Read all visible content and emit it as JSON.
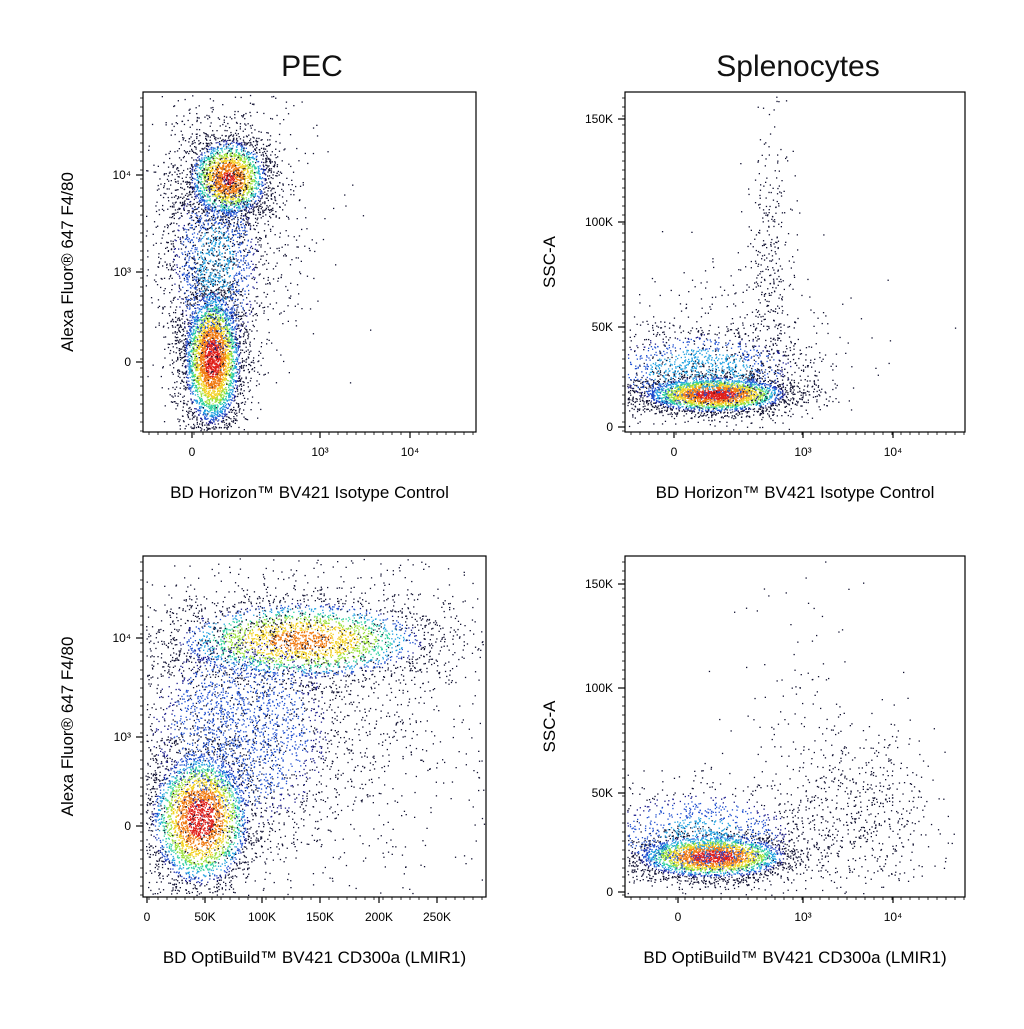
{
  "figure": {
    "column_titles": [
      "PEC",
      "Splenocytes"
    ]
  },
  "colors": {
    "density": [
      "#1a1a8c",
      "#1f4fd0",
      "#1fa0e0",
      "#2fd0a0",
      "#9be03a",
      "#f2d020",
      "#f07a10",
      "#e0201a"
    ],
    "points": "#101030",
    "axes": "#000000"
  },
  "chart_data": [
    {
      "type": "scatter",
      "id": "pec-isotype",
      "title": "PEC",
      "xlabel": "BD Horizon™ BV421 Isotype Control",
      "ylabel": "Alexa Fluor® 647 F4/80",
      "x_scale": "biexponential",
      "y_scale": "biexponential",
      "x_ticks": [
        "0",
        "10³",
        "10⁴"
      ],
      "y_ticks": [
        "0",
        "10³",
        "10⁴"
      ],
      "populations": [
        {
          "name": "",
          "x_center": 150,
          "y_center": 40,
          "spread": "large",
          "density": "high"
        },
        {
          "name": "",
          "x_center": 250,
          "y_center": 9000,
          "spread": "medium",
          "density": "high"
        }
      ]
    },
    {
      "type": "scatter",
      "id": "spleno-isotype",
      "title": "Splenocytes",
      "xlabel": "BD Horizon™ BV421 Isotype Control",
      "ylabel": "SSC-A",
      "x_scale": "biexponential",
      "y_scale": "linear",
      "x_ticks": [
        "0",
        "10³",
        "10⁴"
      ],
      "y_ticks": [
        "0",
        "50K",
        "100K",
        "150K"
      ],
      "ylim": [
        0,
        160000
      ],
      "populations": [
        {
          "name": "",
          "x_center": 250,
          "y_center": 17000,
          "spread": "medium",
          "density": "high"
        },
        {
          "name": "",
          "x_center": 700,
          "y_center": 70000,
          "spread": "tail",
          "density": "low"
        }
      ]
    },
    {
      "type": "scatter",
      "id": "pec-cd300a",
      "title": "",
      "xlabel": "BD OptiBuild™ BV421 CD300a (LMIR1)",
      "ylabel": "Alexa Fluor® 647 F4/80",
      "x_scale": "linear",
      "y_scale": "biexponential",
      "x_ticks": [
        "0",
        "50K",
        "100K",
        "150K",
        "200K",
        "250K"
      ],
      "y_ticks": [
        "0",
        "10³",
        "10⁴"
      ],
      "xlim": [
        0,
        290000
      ],
      "populations": [
        {
          "name": "",
          "x_center": 50000,
          "y_center": 20,
          "spread": "large",
          "density": "high"
        },
        {
          "name": "",
          "x_center": 140000,
          "y_center": 10000,
          "spread": "wide",
          "density": "high"
        }
      ]
    },
    {
      "type": "scatter",
      "id": "spleno-cd300a",
      "title": "",
      "xlabel": "BD OptiBuild™ BV421 CD300a (LMIR1)",
      "ylabel": "SSC-A",
      "x_scale": "biexponential",
      "y_scale": "linear",
      "x_ticks": [
        "0",
        "10³",
        "10⁴"
      ],
      "y_ticks": [
        "0",
        "50K",
        "100K",
        "150K"
      ],
      "ylim": [
        0,
        160000
      ],
      "populations": [
        {
          "name": "",
          "x_center": 250,
          "y_center": 17000,
          "spread": "medium",
          "density": "high"
        },
        {
          "name": "",
          "x_center": 5000,
          "y_center": 35000,
          "spread": "wide",
          "density": "low"
        }
      ]
    }
  ]
}
